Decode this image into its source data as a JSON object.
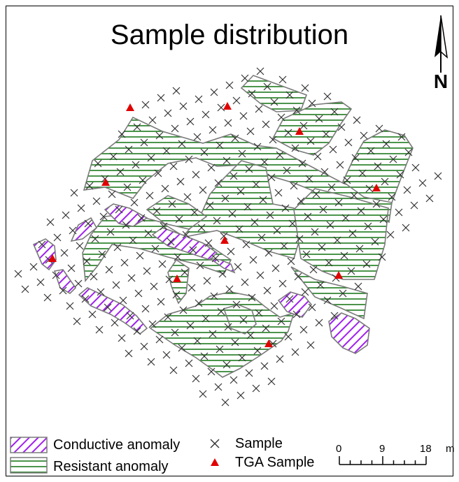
{
  "map": {
    "title": "Sample distribution",
    "north_arrow": "north-arrow-icon",
    "north_label": "N"
  },
  "legend": {
    "conductive_label": "Conductive anomaly",
    "resistant_label": "Resistant anomaly",
    "sample_label": "Sample",
    "tga_label": "TGA Sample"
  },
  "scale_bar": {
    "labels": [
      "0",
      "9",
      "18"
    ],
    "unit": "m"
  },
  "colors": {
    "conductive": "#a020f0",
    "resistant": "#1e7a1e",
    "tga": "#e00000",
    "sample": "#333333",
    "outline": "#7a7a7a"
  }
}
